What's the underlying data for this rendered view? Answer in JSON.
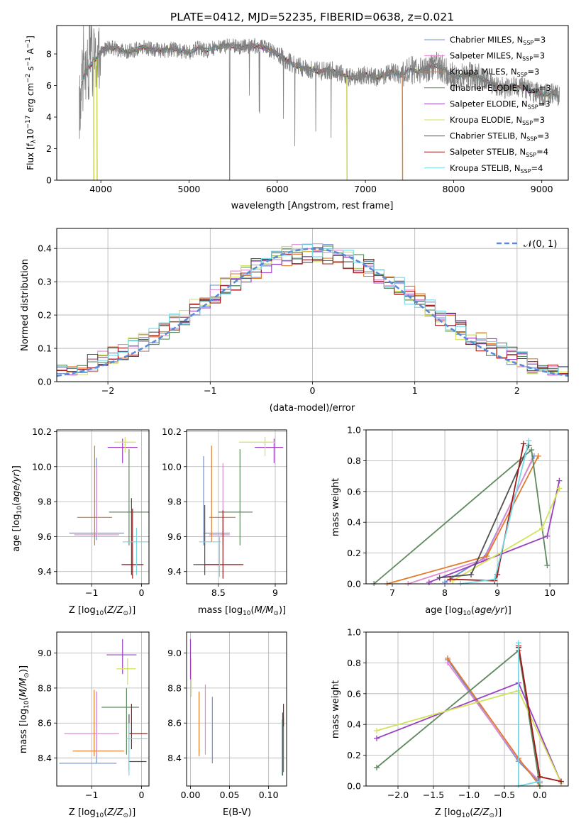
{
  "figure_title": "PLATE=0412, MJD=52235, FIBERID=0638, z=0.021",
  "legend_entries": [
    {
      "label": "Chabrier MILES, N$_{SSP}$=3",
      "base": "Chabrier MILES, N",
      "nssp": "=3",
      "color": "#6f8fd6"
    },
    {
      "label": "Salpeter MILES, N$_{SSP}$=3",
      "base": "Salpeter MILES, N",
      "nssp": "=3",
      "color": "#e28ad0"
    },
    {
      "label": "Kroupa MILES, N$_{SSP}$=3",
      "base": "Kroupa MILES, N",
      "nssp": "=3",
      "color": "#e07a2a"
    },
    {
      "label": "Chabrier ELODIE, N$_{SSP}$=3",
      "base": "Chabrier ELODIE, N",
      "nssp": "=3",
      "color": "#5e8a5e"
    },
    {
      "label": "Salpeter ELODIE, N$_{SSP}$=3",
      "base": "Salpeter ELODIE, N",
      "nssp": "=3",
      "color": "#9a3fc0"
    },
    {
      "label": "Kroupa ELODIE, N$_{SSP}$=3",
      "base": "Kroupa ELODIE, N",
      "nssp": "=3",
      "color": "#d2e35a"
    },
    {
      "label": "Chabrier STELIB, N$_{SSP}$=3",
      "base": "Chabrier STELIB, N",
      "nssp": "=3",
      "color": "#505050"
    },
    {
      "label": "Salpeter STELIB, N$_{SSP}$=4",
      "base": "Salpeter STELIB, N",
      "nssp": "=4",
      "color": "#a01818"
    },
    {
      "label": "Kroupa STELIB, N$_{SSP}$=4",
      "base": "Kroupa STELIB, N",
      "nssp": "=4",
      "color": "#72d8e6"
    }
  ],
  "chart_data": [
    {
      "id": "spectrum",
      "type": "line",
      "xlabel": "wavelength [Angstrom, rest frame]",
      "ylabel": "Flux [f_λ 10^-17 erg cm^-2 s^-1 A^-1]",
      "xlim": [
        3500,
        9300
      ],
      "ylim": [
        0,
        9.8
      ],
      "xticks": [
        4000,
        5000,
        6000,
        7000,
        8000,
        9000
      ],
      "yticks": [
        0,
        2,
        4,
        6,
        8
      ],
      "data_color": "#808080",
      "continuum": [
        [
          3750,
          3.8
        ],
        [
          3780,
          6.0
        ],
        [
          3820,
          6.8
        ],
        [
          3870,
          7.2
        ],
        [
          3920,
          7.6
        ],
        [
          3960,
          7.7
        ],
        [
          4000,
          8.2
        ],
        [
          4100,
          8.4
        ],
        [
          4200,
          8.3
        ],
        [
          4300,
          8.1
        ],
        [
          4400,
          8.3
        ],
        [
          4500,
          8.4
        ],
        [
          4600,
          8.3
        ],
        [
          4700,
          8.2
        ],
        [
          4800,
          8.3
        ],
        [
          4900,
          8.2
        ],
        [
          5000,
          8.1
        ],
        [
          5100,
          8.4
        ],
        [
          5200,
          8.2
        ],
        [
          5300,
          8.4
        ],
        [
          5400,
          8.5
        ],
        [
          5500,
          8.5
        ],
        [
          5600,
          8.4
        ],
        [
          5700,
          8.5
        ],
        [
          5800,
          8.5
        ],
        [
          5900,
          8.3
        ],
        [
          6000,
          8.0
        ],
        [
          6100,
          7.6
        ],
        [
          6200,
          7.3
        ],
        [
          6300,
          7.1
        ],
        [
          6400,
          7.0
        ],
        [
          6500,
          6.9
        ],
        [
          6600,
          7.0
        ],
        [
          6700,
          6.8
        ],
        [
          6800,
          6.5
        ],
        [
          6900,
          6.5
        ],
        [
          7000,
          6.7
        ],
        [
          7100,
          6.5
        ],
        [
          7200,
          6.6
        ],
        [
          7300,
          6.9
        ],
        [
          7400,
          6.6
        ],
        [
          7500,
          7.0
        ],
        [
          7600,
          6.9
        ],
        [
          7700,
          7.1
        ],
        [
          7800,
          7.3
        ],
        [
          7900,
          7.0
        ],
        [
          8000,
          6.5
        ],
        [
          8100,
          6.6
        ],
        [
          8200,
          6.7
        ],
        [
          8300,
          6.5
        ],
        [
          8400,
          6.2
        ],
        [
          8500,
          6.0
        ],
        [
          8600,
          5.8
        ],
        [
          8700,
          6.0
        ],
        [
          8800,
          5.8
        ],
        [
          8900,
          5.6
        ],
        [
          9000,
          5.4
        ],
        [
          9100,
          5.5
        ],
        [
          9200,
          5.3
        ]
      ],
      "dropouts": [
        [
          6792,
          "#c8d24a"
        ],
        [
          7422,
          "#e07a2a"
        ],
        [
          3920,
          "#c8d24a"
        ],
        [
          3958,
          "#c8d24a"
        ]
      ]
    },
    {
      "id": "residuals",
      "type": "area",
      "xlabel": "(data-model)/error",
      "ylabel": "Normed distribution",
      "xlim": [
        -2.5,
        2.5
      ],
      "ylim": [
        0,
        0.46
      ],
      "xticks": [
        -2,
        -1,
        0,
        1,
        2
      ],
      "yticks": [
        0.0,
        0.1,
        0.2,
        0.3,
        0.4
      ],
      "reference_label": "𝒩(0, 1)",
      "reference_color": "#5b8bd8",
      "bin_edges": [
        -2.5,
        2.5
      ],
      "n_bins": 50
    },
    {
      "id": "age-vs-Z",
      "type": "scatter",
      "xlabel": "Z [log10(Z/Z⊙)]",
      "ylabel": "age [log10(age/yr)]",
      "xlim": [
        -1.7,
        0.15
      ],
      "ylim": [
        9.33,
        10.21
      ],
      "xticks": [
        -1,
        0
      ],
      "yticks": [
        9.4,
        9.6,
        9.8,
        10.0,
        10.2
      ],
      "points": [
        {
          "x": -0.9,
          "y": 9.62,
          "xerr": 0.55,
          "yerr": 0.0,
          "color": "#6f8fd6",
          "vy": [
            9.58,
            10.05
          ]
        },
        {
          "x": -0.9,
          "y": 9.61,
          "xerr": 0.45,
          "yerr": 0.0,
          "color": "#e28ad0",
          "vy": [
            9.6,
            10.0
          ]
        },
        {
          "x": -0.94,
          "y": 9.71,
          "xerr": 0.35,
          "color": "#e07a2a",
          "vy": [
            9.55,
            10.12
          ]
        },
        {
          "x": -0.25,
          "y": 9.74,
          "xerr": 0.4,
          "color": "#5e8a5e",
          "vy": [
            9.55,
            10.1
          ]
        },
        {
          "x": -0.38,
          "y": 10.11,
          "xerr": 0.3,
          "color": "#9a3fc0",
          "vy": [
            10.02,
            10.16
          ]
        },
        {
          "x": -0.33,
          "y": 10.14,
          "xerr": 0.22,
          "color": "#d2e35a",
          "vy": [
            10.08,
            10.17
          ]
        },
        {
          "x": -0.2,
          "y": 9.76,
          "xerr": 0.0,
          "color": "#505050",
          "vy": [
            9.38,
            9.82
          ]
        },
        {
          "x": -0.18,
          "y": 9.44,
          "xerr": 0.22,
          "color": "#a01818",
          "vy": [
            9.36,
            9.76
          ]
        },
        {
          "x": -0.1,
          "y": 9.57,
          "xerr": 0.28,
          "color": "#72d8e6",
          "vy": [
            9.38,
            9.65
          ]
        }
      ]
    },
    {
      "id": "age-vs-mass",
      "type": "scatter",
      "xlabel": "mass [log10(M/M⊙)]",
      "ylabel": "",
      "xlim": [
        8.22,
        9.1
      ],
      "ylim": [
        9.33,
        10.21
      ],
      "xticks": [
        8.5,
        9.0
      ],
      "yticks": [
        9.4,
        9.6,
        9.8,
        10.0,
        10.2
      ],
      "points": [
        {
          "x": 8.37,
          "y": 9.62,
          "x0": 8.37,
          "x1": 8.6,
          "color": "#6f8fd6",
          "vy": [
            9.55,
            10.06
          ]
        },
        {
          "x": 8.54,
          "y": 9.61,
          "x0": 8.42,
          "x1": 8.6,
          "color": "#e28ad0",
          "vy": [
            9.55,
            10.02
          ]
        },
        {
          "x": 8.44,
          "y": 9.71,
          "x0": 8.42,
          "x1": 8.65,
          "color": "#e07a2a",
          "vy": [
            9.57,
            10.12
          ]
        },
        {
          "x": 8.69,
          "y": 9.74,
          "x0": 8.5,
          "x1": 8.8,
          "color": "#5e8a5e",
          "vy": [
            9.55,
            10.1
          ]
        },
        {
          "x": 8.99,
          "y": 10.11,
          "x0": 8.82,
          "x1": 9.07,
          "color": "#9a3fc0",
          "vy": [
            10.02,
            10.16
          ]
        },
        {
          "x": 8.91,
          "y": 10.14,
          "x0": 8.68,
          "x1": 9.0,
          "color": "#d2e35a",
          "vy": [
            10.06,
            10.17
          ]
        },
        {
          "x": 8.38,
          "y": 9.44,
          "x0": 8.28,
          "x1": 8.52,
          "color": "#505050",
          "vy": [
            9.38,
            9.78
          ]
        },
        {
          "x": 8.54,
          "y": 9.44,
          "x0": 8.38,
          "x1": 8.72,
          "color": "#a01818",
          "vy": [
            9.36,
            9.75
          ]
        },
        {
          "x": 8.51,
          "y": 9.57,
          "x0": 8.33,
          "x1": 8.52,
          "color": "#72d8e6",
          "vy": [
            9.37,
            9.6
          ]
        }
      ]
    },
    {
      "id": "weight-vs-age",
      "type": "line",
      "xlabel": "age [log10(age/yr)]",
      "ylabel": "mass weight",
      "xlim": [
        6.5,
        10.35
      ],
      "ylim": [
        0.0,
        1.0
      ],
      "xticks": [
        7,
        8,
        9,
        10
      ],
      "yticks": [
        0.0,
        0.2,
        0.4,
        0.6,
        0.8,
        1.0
      ],
      "series": [
        {
          "color": "#6f8fd6",
          "x": [
            8.0,
            8.75,
            9.7
          ],
          "y": [
            0.01,
            0.17,
            0.83
          ]
        },
        {
          "color": "#e28ad0",
          "x": [
            7.3,
            8.75,
            9.65
          ],
          "y": [
            0.0,
            0.16,
            0.8
          ]
        },
        {
          "color": "#e07a2a",
          "x": [
            6.9,
            8.8,
            9.78
          ],
          "y": [
            0.0,
            0.18,
            0.83
          ]
        },
        {
          "color": "#5e8a5e",
          "x": [
            9.95,
            9.65,
            6.65
          ],
          "y": [
            0.12,
            0.87,
            0.0
          ]
        },
        {
          "color": "#9a3fc0",
          "x": [
            7.7,
            9.95,
            10.18
          ],
          "y": [
            0.01,
            0.31,
            0.67
          ]
        },
        {
          "color": "#d2e35a",
          "x": [
            8.15,
            9.85,
            10.18
          ],
          "y": [
            0.02,
            0.36,
            0.62
          ]
        },
        {
          "color": "#505050",
          "x": [
            7.9,
            8.5,
            9.6
          ],
          "y": [
            0.04,
            0.06,
            0.9
          ]
        },
        {
          "color": "#a01818",
          "x": [
            8.1,
            8.95,
            9.0,
            9.5
          ],
          "y": [
            0.03,
            0.02,
            0.06,
            0.91
          ]
        },
        {
          "color": "#72d8e6",
          "x": [
            8.3,
            8.95,
            9.6
          ],
          "y": [
            0.0,
            0.03,
            0.93
          ]
        }
      ]
    },
    {
      "id": "mass-vs-Z",
      "type": "scatter",
      "xlabel": "Z [log10(Z/Z⊙)]",
      "ylabel": "mass [log10(M/M⊙)]",
      "xlim": [
        -1.7,
        0.15
      ],
      "ylim": [
        8.24,
        9.12
      ],
      "xticks": [
        -1,
        0
      ],
      "yticks": [
        8.4,
        8.6,
        8.8,
        9.0
      ],
      "points": [
        {
          "x": -0.9,
          "y": 8.37,
          "x0": -1.65,
          "x1": -0.5,
          "color": "#6f8fd6",
          "vy": [
            8.37,
            8.78
          ]
        },
        {
          "x": -0.9,
          "y": 8.54,
          "x0": -1.55,
          "x1": -0.45,
          "color": "#e28ad0",
          "vy": [
            8.41,
            8.78
          ]
        },
        {
          "x": -0.95,
          "y": 8.44,
          "x0": -1.38,
          "x1": -0.35,
          "color": "#e07a2a",
          "vy": [
            8.41,
            8.79
          ]
        },
        {
          "x": -0.3,
          "y": 8.69,
          "x0": -0.8,
          "x1": -0.05,
          "color": "#5e8a5e",
          "vy": [
            8.42,
            8.8
          ]
        },
        {
          "x": -0.38,
          "y": 8.99,
          "x0": -0.7,
          "x1": -0.1,
          "color": "#9a3fc0",
          "vy": [
            8.88,
            9.08
          ]
        },
        {
          "x": -0.28,
          "y": 8.91,
          "x0": -0.5,
          "x1": -0.12,
          "color": "#d2e35a",
          "vy": [
            8.82,
            8.97
          ]
        },
        {
          "x": -0.25,
          "y": 8.38,
          "x0": -0.25,
          "x1": 0.1,
          "color": "#505050",
          "vy": [
            8.33,
            8.65
          ]
        },
        {
          "x": -0.2,
          "y": 8.54,
          "x0": -0.25,
          "x1": 0.12,
          "color": "#a01818",
          "vy": [
            8.45,
            8.71
          ]
        },
        {
          "x": -0.25,
          "y": 8.51,
          "x0": -0.3,
          "x1": 0.12,
          "color": "#72d8e6",
          "vy": [
            8.3,
            8.6
          ]
        }
      ]
    },
    {
      "id": "mass-vs-ebv",
      "type": "scatter",
      "xlabel": "E(B-V)",
      "ylabel": "",
      "xlim": [
        -0.005,
        0.123
      ],
      "ylim": [
        8.24,
        9.12
      ],
      "xticks": [
        0.0,
        0.05,
        0.1
      ],
      "xtick_labels": [
        "0.00",
        "0.05",
        "0.10"
      ],
      "yticks": [
        8.4,
        8.6,
        8.8,
        9.0
      ],
      "points": [
        {
          "x": 0.028,
          "y": 8.55,
          "vy": [
            8.37,
            8.75
          ],
          "color": "#6f8fd6"
        },
        {
          "x": 0.019,
          "y": 8.55,
          "vy": [
            8.42,
            8.82
          ],
          "color": "#e28ad0"
        },
        {
          "x": 0.011,
          "y": 8.6,
          "vy": [
            8.41,
            8.78
          ],
          "color": "#e07a2a"
        },
        {
          "x": 0.119,
          "y": 8.45,
          "vy": [
            8.32,
            8.63
          ],
          "color": "#5e8a5e"
        },
        {
          "x": 0.0,
          "y": 8.99,
          "vy": [
            8.85,
            9.08
          ],
          "color": "#9a3fc0"
        },
        {
          "x": 0.001,
          "y": 8.9,
          "vy": [
            8.75,
            8.97
          ],
          "color": "#d2e35a"
        },
        {
          "x": 0.118,
          "y": 8.5,
          "vy": [
            8.3,
            8.66
          ],
          "color": "#505050"
        },
        {
          "x": 0.119,
          "y": 8.65,
          "vy": [
            8.58,
            8.71
          ],
          "color": "#a01818"
        },
        {
          "x": 0.117,
          "y": 8.45,
          "vy": [
            8.3,
            8.62
          ],
          "color": "#72d8e6"
        }
      ]
    },
    {
      "id": "weight-vs-Z",
      "type": "line",
      "xlabel": "Z [log10(Z/Z⊙)]",
      "ylabel": "mass weight",
      "xlim": [
        -2.45,
        0.4
      ],
      "ylim": [
        0.0,
        1.0
      ],
      "xticks": [
        -2.0,
        -1.5,
        -1.0,
        -0.5,
        0.0
      ],
      "xtick_labels": [
        "−2.0",
        "−1.5",
        "−1.0",
        "−0.5",
        "0.0"
      ],
      "yticks": [
        0.0,
        0.2,
        0.4,
        0.6,
        0.8,
        1.0
      ],
      "series": [
        {
          "color": "#6f8fd6",
          "x": [
            -1.3,
            -0.3,
            0.0
          ],
          "y": [
            0.82,
            0.16,
            0.02
          ]
        },
        {
          "color": "#e28ad0",
          "x": [
            -1.3,
            -0.3,
            0.0
          ],
          "y": [
            0.8,
            0.17,
            0.03
          ]
        },
        {
          "color": "#e07a2a",
          "x": [
            -1.3,
            -0.3,
            0.0
          ],
          "y": [
            0.83,
            0.18,
            0.0
          ]
        },
        {
          "color": "#5e8a5e",
          "x": [
            -2.3,
            -0.3,
            0.0
          ],
          "y": [
            0.12,
            0.88,
            0.0
          ]
        },
        {
          "color": "#9a3fc0",
          "x": [
            -2.3,
            -0.3,
            0.3
          ],
          "y": [
            0.31,
            0.67,
            0.02
          ]
        },
        {
          "color": "#d2e35a",
          "x": [
            -2.3,
            -0.3,
            0.3
          ],
          "y": [
            0.36,
            0.62,
            0.02
          ]
        },
        {
          "color": "#505050",
          "x": [
            -0.3,
            -0.3,
            0.0
          ],
          "y": [
            0.9,
            0.9,
            0.06
          ]
        },
        {
          "color": "#a01818",
          "x": [
            -0.3,
            0.0,
            0.3
          ],
          "y": [
            0.91,
            0.06,
            0.03
          ]
        },
        {
          "color": "#72d8e6",
          "x": [
            -0.3,
            -0.3,
            0.0
          ],
          "y": [
            0.93,
            0.0,
            0.03
          ]
        }
      ]
    }
  ]
}
